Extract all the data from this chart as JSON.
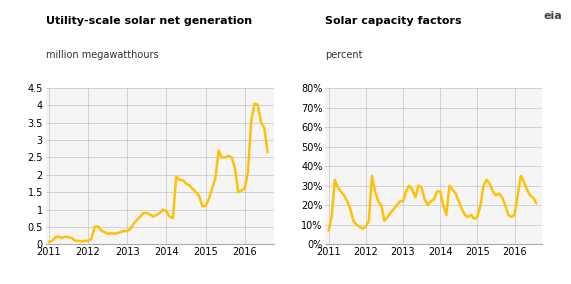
{
  "title1": "Utility-scale solar net generation",
  "subtitle1": "million megawatthours",
  "title2": "Solar capacity factors",
  "subtitle2": "percent",
  "line_color": "#FFC107",
  "line_width": 1.8,
  "background_color": "#ffffff",
  "grid_color": "#cccccc",
  "plot_bg": "#f5f5f5",
  "net_gen": [
    0.07,
    0.1,
    0.2,
    0.22,
    0.18,
    0.22,
    0.2,
    0.18,
    0.1,
    0.1,
    0.08,
    0.1,
    0.1,
    0.15,
    0.5,
    0.52,
    0.4,
    0.35,
    0.3,
    0.32,
    0.3,
    0.32,
    0.35,
    0.38,
    0.38,
    0.45,
    0.6,
    0.7,
    0.8,
    0.9,
    0.9,
    0.85,
    0.8,
    0.85,
    0.9,
    1.0,
    0.95,
    0.8,
    0.75,
    1.95,
    1.85,
    1.85,
    1.75,
    1.7,
    1.6,
    1.5,
    1.4,
    1.1,
    1.1,
    1.3,
    1.6,
    1.9,
    2.7,
    2.5,
    2.5,
    2.55,
    2.5,
    2.2,
    1.5,
    1.55,
    1.6,
    2.1,
    3.55,
    4.05,
    4.02,
    3.5,
    3.35,
    2.65
  ],
  "cap_factor": [
    7,
    14,
    33,
    29,
    27,
    25,
    22,
    18,
    12,
    10,
    9,
    8,
    9,
    12,
    35,
    27,
    22,
    20,
    12,
    14,
    16,
    18,
    20,
    22,
    22,
    27,
    30,
    28,
    24,
    30,
    29,
    23,
    20,
    22,
    23,
    27,
    27,
    20,
    15,
    30,
    28,
    26,
    22,
    18,
    15,
    14,
    15,
    13,
    14,
    20,
    30,
    33,
    31,
    27,
    25,
    26,
    24,
    20,
    15,
    14,
    15,
    25,
    35,
    32,
    28,
    25,
    24,
    21
  ],
  "ylim1": [
    0,
    4.5
  ],
  "yticks1": [
    0.0,
    0.5,
    1.0,
    1.5,
    2.0,
    2.5,
    3.0,
    3.5,
    4.0,
    4.5
  ],
  "ylim2": [
    0,
    80
  ],
  "yticks2": [
    0,
    10,
    20,
    30,
    40,
    50,
    60,
    70,
    80
  ],
  "n_months": 68,
  "start_year": 2011,
  "xtick_years": [
    2011,
    2012,
    2013,
    2014,
    2015,
    2016
  ]
}
